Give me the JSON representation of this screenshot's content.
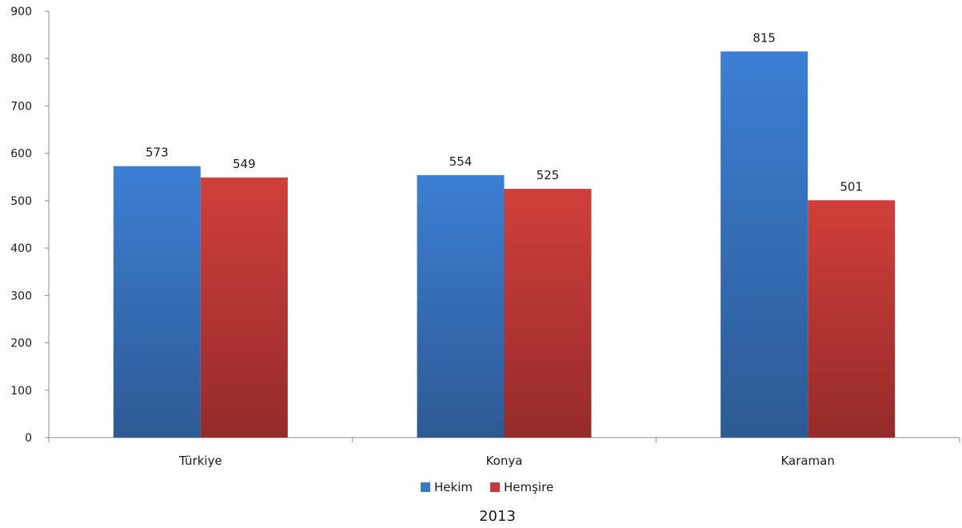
{
  "chart_data": {
    "type": "bar",
    "categories": [
      "Türkiye",
      "Konya",
      "Karaman"
    ],
    "series": [
      {
        "name": "Hekim",
        "values": [
          573,
          554,
          815
        ],
        "color": "#3a78c9"
      },
      {
        "name": "Hemşire",
        "values": [
          549,
          525,
          501
        ],
        "color": "#c83a37"
      }
    ],
    "data_labels": true,
    "y_ticks": [
      "0",
      "100",
      "200",
      "300",
      "400",
      "500",
      "600",
      "700",
      "800",
      "900"
    ],
    "ylim": [
      0,
      900
    ],
    "grid": false,
    "legend_position": "bottom",
    "caption": "2013",
    "title": "",
    "xlabel": "",
    "ylabel": ""
  }
}
